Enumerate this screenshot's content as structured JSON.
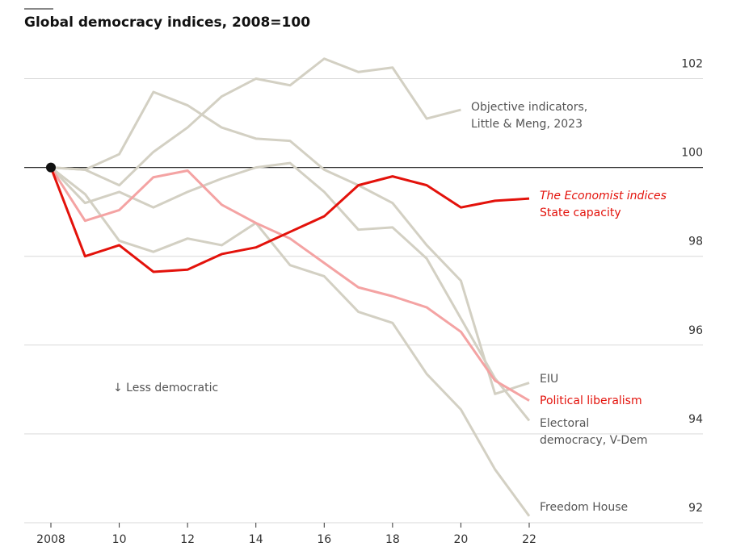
{
  "chart_data": {
    "type": "line",
    "title": "Global democracy indices, 2008=100",
    "annotation": "↓ Less democratic",
    "group_label": "The Economist indices",
    "x": [
      2008,
      2009,
      2010,
      2011,
      2012,
      2013,
      2014,
      2015,
      2016,
      2017,
      2018,
      2019,
      2020,
      2021,
      2022
    ],
    "xlim": [
      2008,
      2022
    ],
    "xticks": [
      2008,
      {
        "value": 2010,
        "label": "10"
      },
      {
        "value": 2012,
        "label": "12"
      },
      {
        "value": 2014,
        "label": "14"
      },
      {
        "value": 2016,
        "label": "16"
      },
      {
        "value": 2018,
        "label": "18"
      },
      {
        "value": 2020,
        "label": "20"
      },
      {
        "value": 2022,
        "label": "22"
      }
    ],
    "ylim": [
      92,
      102.5
    ],
    "yticks": [
      92,
      94,
      96,
      98,
      100,
      102
    ],
    "baseline": 100,
    "grid": true,
    "series": [
      {
        "name": "Objective indicators, Little & Meng, 2023",
        "color": "#d3d0c3",
        "values": [
          100,
          99.95,
          99.6,
          100.35,
          100.9,
          101.6,
          102.0,
          101.85,
          102.45,
          102.15,
          102.25,
          101.1,
          101.3,
          null,
          null
        ]
      },
      {
        "name": "EIU",
        "color": "#d3d0c3",
        "values": [
          100,
          99.95,
          100.3,
          101.7,
          101.4,
          100.9,
          100.65,
          100.6,
          99.95,
          99.6,
          99.2,
          98.25,
          97.45,
          94.9,
          95.15
        ]
      },
      {
        "name": "Electoral democracy, V-Dem",
        "color": "#d3d0c3",
        "values": [
          100,
          99.2,
          99.45,
          99.1,
          99.45,
          99.75,
          100.0,
          100.1,
          99.45,
          98.6,
          98.65,
          97.95,
          96.6,
          95.25,
          94.3
        ]
      },
      {
        "name": "Freedom House",
        "color": "#d3d0c3",
        "values": [
          100,
          99.4,
          98.35,
          98.1,
          98.4,
          98.25,
          98.75,
          97.8,
          97.55,
          96.75,
          96.5,
          95.35,
          94.55,
          93.2,
          92.15
        ]
      },
      {
        "name": "Political liberalism",
        "color": "#f4a3a3",
        "values": [
          100,
          98.8,
          99.04,
          99.78,
          99.93,
          99.16,
          98.75,
          98.4,
          97.85,
          97.3,
          97.1,
          96.85,
          96.3,
          95.2,
          94.75
        ]
      },
      {
        "name": "State capacity",
        "color": "#e3120b",
        "values": [
          100,
          98.0,
          98.25,
          97.65,
          97.7,
          98.05,
          98.2,
          98.55,
          98.9,
          99.6,
          99.8,
          99.6,
          99.1,
          99.25,
          99.3
        ]
      }
    ]
  }
}
